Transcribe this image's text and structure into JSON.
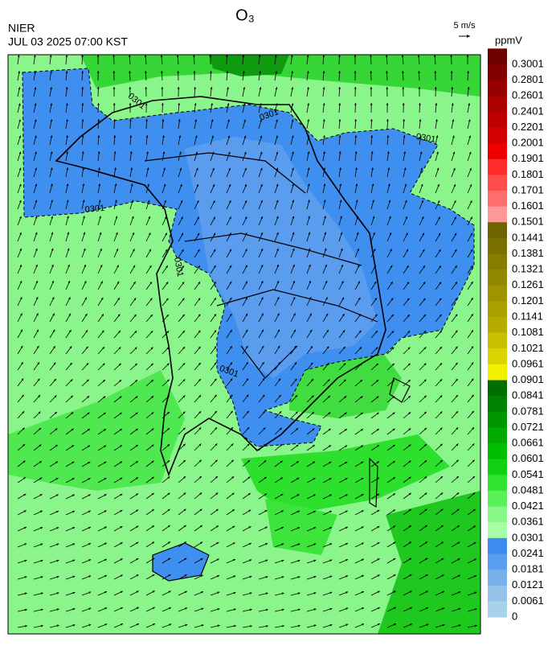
{
  "title": "O₃",
  "agency": "NIER",
  "timestamp": "JUL 03 2025 07:00 KST",
  "wind_scale": "5 m/s",
  "unit": "ppmV",
  "contour_labels": [
    "0301",
    "0301",
    "0301",
    "0301",
    "0301",
    "0301"
  ],
  "colorbar": {
    "labels": [
      0.3001,
      0.2801,
      0.2601,
      0.2401,
      0.2201,
      0.2001,
      0.1901,
      0.1801,
      0.1701,
      0.1601,
      0.1501,
      0.1441,
      0.1381,
      0.1321,
      0.1261,
      0.1201,
      0.1141,
      0.1081,
      0.1021,
      0.0961,
      0.0901,
      0.0841,
      0.0781,
      0.0721,
      0.0661,
      0.0601,
      0.0541,
      0.0481,
      0.0421,
      0.0361,
      0.0301,
      0.0241,
      0.0181,
      0.0121,
      0.0061,
      0
    ],
    "colors": [
      "#6e0000",
      "#820000",
      "#960000",
      "#aa0000",
      "#be0000",
      "#d20000",
      "#ee0000",
      "#ff2a2a",
      "#ff4d4d",
      "#ff6e6e",
      "#ff9898",
      "#6e6400",
      "#7a7000",
      "#867c00",
      "#928800",
      "#9e9400",
      "#aaa000",
      "#b6ac00",
      "#c8c000",
      "#dcd400",
      "#f0f000",
      "#006e00",
      "#008200",
      "#009600",
      "#00aa00",
      "#00be00",
      "#10d210",
      "#30e430",
      "#5af05a",
      "#88f888",
      "#a8ffa8",
      "#3c8cf0",
      "#5a9eee",
      "#78b0ec",
      "#94c2ea",
      "#a8d2ea"
    ]
  }
}
